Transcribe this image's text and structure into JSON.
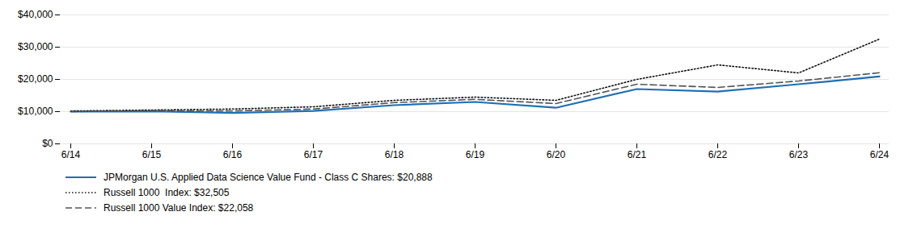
{
  "chart_data": {
    "type": "line",
    "categories": [
      "6/14",
      "6/15",
      "6/16",
      "6/17",
      "6/18",
      "6/19",
      "6/20",
      "6/21",
      "6/22",
      "6/23",
      "6/24"
    ],
    "series": [
      {
        "name": "JPMorgan U.S. Applied Data Science Value Fund - Class C Shares: $20,888",
        "color": "#1F6FB4",
        "line_style": "solid",
        "values": [
          10000,
          10100,
          9600,
          10200,
          12000,
          13000,
          11200,
          17000,
          16200,
          18500,
          20888
        ]
      },
      {
        "name": "Russell 1000  Index: $32,505",
        "color": "#111111",
        "line_style": "dotted",
        "values": [
          10200,
          10500,
          10800,
          11500,
          13500,
          14500,
          13500,
          20000,
          24500,
          22000,
          32505
        ]
      },
      {
        "name": "Russell 1000 Value Index: $22,058",
        "color": "#555555",
        "line_style": "dashed",
        "values": [
          10000,
          10300,
          10200,
          10800,
          12800,
          13800,
          12500,
          18500,
          17500,
          19500,
          22058
        ]
      }
    ],
    "ylim": [
      0,
      40000
    ],
    "yticks": [
      {
        "value": 0,
        "label": "$0"
      },
      {
        "value": 10000,
        "label": "$10,000"
      },
      {
        "value": 20000,
        "label": "$20,000"
      },
      {
        "value": 30000,
        "label": "$30,000"
      },
      {
        "value": 40000,
        "label": "$40,000"
      }
    ],
    "grid": true,
    "legend": "bottom left"
  }
}
